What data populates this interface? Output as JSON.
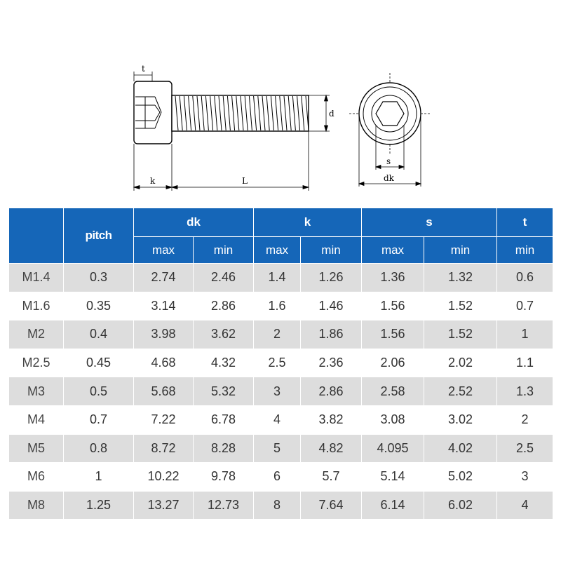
{
  "diagram": {
    "labels": {
      "t": "t",
      "d": "d",
      "k": "k",
      "L": "L",
      "s": "s",
      "dk": "dk"
    }
  },
  "table": {
    "header": {
      "pitch": "pitch",
      "dk": "dk",
      "k": "k",
      "s": "s",
      "t": "t",
      "subs": [
        "max",
        "min",
        "max",
        "min",
        "max",
        "min",
        "min"
      ]
    },
    "rows": [
      [
        "M1.4",
        "0.3",
        "2.74",
        "2.46",
        "1.4",
        "1.26",
        "1.36",
        "1.32",
        "0.6"
      ],
      [
        "M1.6",
        "0.35",
        "3.14",
        "2.86",
        "1.6",
        "1.46",
        "1.56",
        "1.52",
        "0.7"
      ],
      [
        "M2",
        "0.4",
        "3.98",
        "3.62",
        "2",
        "1.86",
        "1.56",
        "1.52",
        "1"
      ],
      [
        "M2.5",
        "0.45",
        "4.68",
        "4.32",
        "2.5",
        "2.36",
        "2.06",
        "2.02",
        "1.1"
      ],
      [
        "M3",
        "0.5",
        "5.68",
        "5.32",
        "3",
        "2.86",
        "2.58",
        "2.52",
        "1.3"
      ],
      [
        "M4",
        "0.7",
        "7.22",
        "6.78",
        "4",
        "3.82",
        "3.08",
        "3.02",
        "2"
      ],
      [
        "M5",
        "0.8",
        "8.72",
        "8.28",
        "5",
        "4.82",
        "4.095",
        "4.02",
        "2.5"
      ],
      [
        "M6",
        "1",
        "10.22",
        "9.78",
        "6",
        "5.7",
        "5.14",
        "5.02",
        "3"
      ],
      [
        "M8",
        "1.25",
        "13.27",
        "12.73",
        "8",
        "7.64",
        "6.14",
        "6.02",
        "4"
      ]
    ],
    "colors": {
      "header_bg": "#1566b8",
      "stripe": "#dddddd"
    }
  }
}
